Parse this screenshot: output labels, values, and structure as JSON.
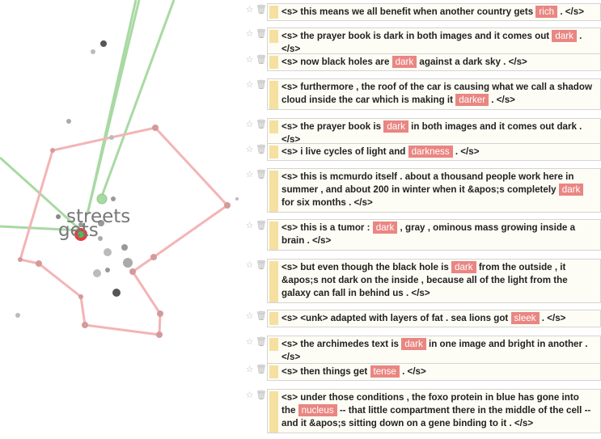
{
  "projection": {
    "labels": [
      "streets",
      "gets"
    ],
    "colors": {
      "pink_path": "#f4b4b4",
      "pink_node": "#d49a9a",
      "green_line": "#a9d9a3",
      "point": "#8c8c8c",
      "selected_ring": "#e23f3f",
      "selected_center": "#58b858",
      "label": "#777777"
    }
  },
  "colors": {
    "highlight": "#e98682",
    "card_bar": "#f5e0a0",
    "card_bg": "#fdfcf5"
  },
  "icons": {
    "star": "star-icon",
    "delete": "trash-icon"
  },
  "sentences": [
    {
      "pre": "<s> this means we all benefit when another country gets ",
      "word": "rich",
      "post": " . </s>"
    },
    {
      "pre": "<s> the prayer book is dark in both images and it comes out ",
      "word": "dark",
      "post": " . </s>"
    },
    {
      "pre": "<s> now black holes are ",
      "word": "dark",
      "post": " against a dark sky . </s>"
    },
    {
      "pre": "<s> furthermore , the roof of the car is causing what we call a shadow cloud inside the car which is making it ",
      "word": "darker",
      "post": " . </s>"
    },
    {
      "pre": "<s> the prayer book is ",
      "word": "dark",
      "post": " in both images and it comes out dark . </s>"
    },
    {
      "pre": "<s> i live cycles of light and ",
      "word": "darkness",
      "post": " . </s>"
    },
    {
      "pre": "<s> this is mcmurdo itself . about a thousand people work here in summer , and about 200 in winter when it &apos;s completely ",
      "word": "dark",
      "post": " for six months . </s>"
    },
    {
      "pre": "<s> this is a tumor : ",
      "word": "dark",
      "post": " , gray , ominous mass growing inside a brain . </s>"
    },
    {
      "pre": "<s> but even though the black hole is ",
      "word": "dark",
      "post": " from the outside , it &apos;s not dark on the inside , because all of the light from the galaxy can fall in behind us . </s>"
    },
    {
      "pre": "<s> <unk> adapted with layers of fat . sea lions got ",
      "word": "sleek",
      "post": " . </s>"
    },
    {
      "pre": "<s> the archimedes text is ",
      "word": "dark",
      "post": " in one image and bright in another . </s>"
    },
    {
      "pre": "<s> then things get ",
      "word": "tense",
      "post": " . </s>"
    },
    {
      "pre": "<s> under those conditions , the foxo protein in blue has gone into the ",
      "word": "nucleus",
      "post": " -- that little compartment there in the middle of the cell -- and it &apos;s sitting down on a gene binding to it . </s>"
    }
  ]
}
